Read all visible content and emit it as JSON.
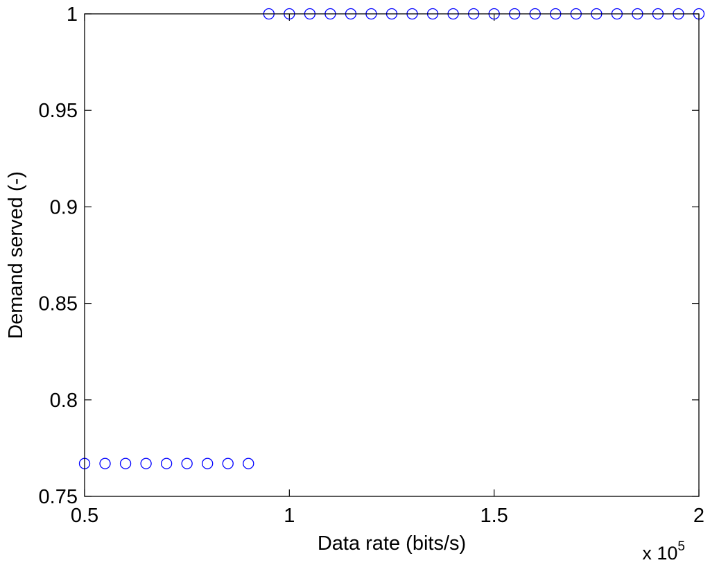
{
  "chart_data": {
    "type": "scatter",
    "xlabel": "Data rate (bits/s)",
    "ylabel": "Demand served (-)",
    "x_multiplier_label": "x 10",
    "x_multiplier_exponent": "5",
    "xlim": [
      0.5,
      2
    ],
    "ylim": [
      0.75,
      1
    ],
    "xticks": [
      0.5,
      1,
      1.5,
      2
    ],
    "xtick_labels": [
      "0.5",
      "1",
      "1.5",
      "2"
    ],
    "yticks": [
      0.75,
      0.8,
      0.85,
      0.9,
      0.95,
      1
    ],
    "ytick_labels": [
      "0.75",
      "0.8",
      "0.85",
      "0.9",
      "0.95",
      "1"
    ],
    "grid": false,
    "marker": "circle-open",
    "series": [
      {
        "color": "#0000ff",
        "x": [
          0.5,
          0.55,
          0.6,
          0.65,
          0.7,
          0.75,
          0.8,
          0.85,
          0.9,
          0.95,
          1.0,
          1.05,
          1.1,
          1.15,
          1.2,
          1.25,
          1.3,
          1.35,
          1.4,
          1.45,
          1.5,
          1.55,
          1.6,
          1.65,
          1.7,
          1.75,
          1.8,
          1.85,
          1.9,
          1.95,
          2.0
        ],
        "y": [
          0.767,
          0.767,
          0.767,
          0.767,
          0.767,
          0.767,
          0.767,
          0.767,
          0.767,
          1,
          1,
          1,
          1,
          1,
          1,
          1,
          1,
          1,
          1,
          1,
          1,
          1,
          1,
          1,
          1,
          1,
          1,
          1,
          1,
          1,
          1
        ]
      }
    ]
  }
}
